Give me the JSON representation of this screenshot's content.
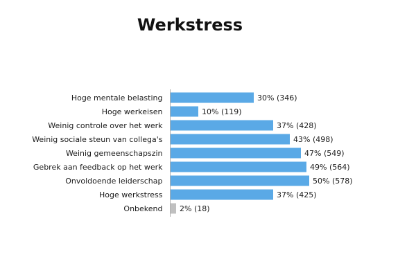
{
  "chart_data": {
    "type": "bar",
    "orientation": "horizontal",
    "title": "Werkstress",
    "categories": [
      "Hoge mentale belasting",
      "Hoge werkeisen",
      "Weinig controle over het werk",
      "Weinig sociale steun van collega's",
      "Weinig gemeenschapszin",
      "Gebrek aan feedback op het werk",
      "Onvoldoende leiderschap",
      "Hoge werkstress",
      "Onbekend"
    ],
    "values": [
      30,
      10,
      37,
      43,
      47,
      49,
      50,
      37,
      2
    ],
    "data_labels": [
      "30% (346)",
      "10% (119)",
      "37% (428)",
      "43% (498)",
      "47% (549)",
      "49% (564)",
      "50% (578)",
      "37% (425)",
      "2% (18)"
    ],
    "value_unit": "percent",
    "xlim": [
      0,
      100
    ],
    "grid": false,
    "legend": "none",
    "colors": {
      "bar": "#5aa9e6",
      "bar_unknown": "#c0c0c0",
      "axis": "#b0b0b0"
    }
  }
}
